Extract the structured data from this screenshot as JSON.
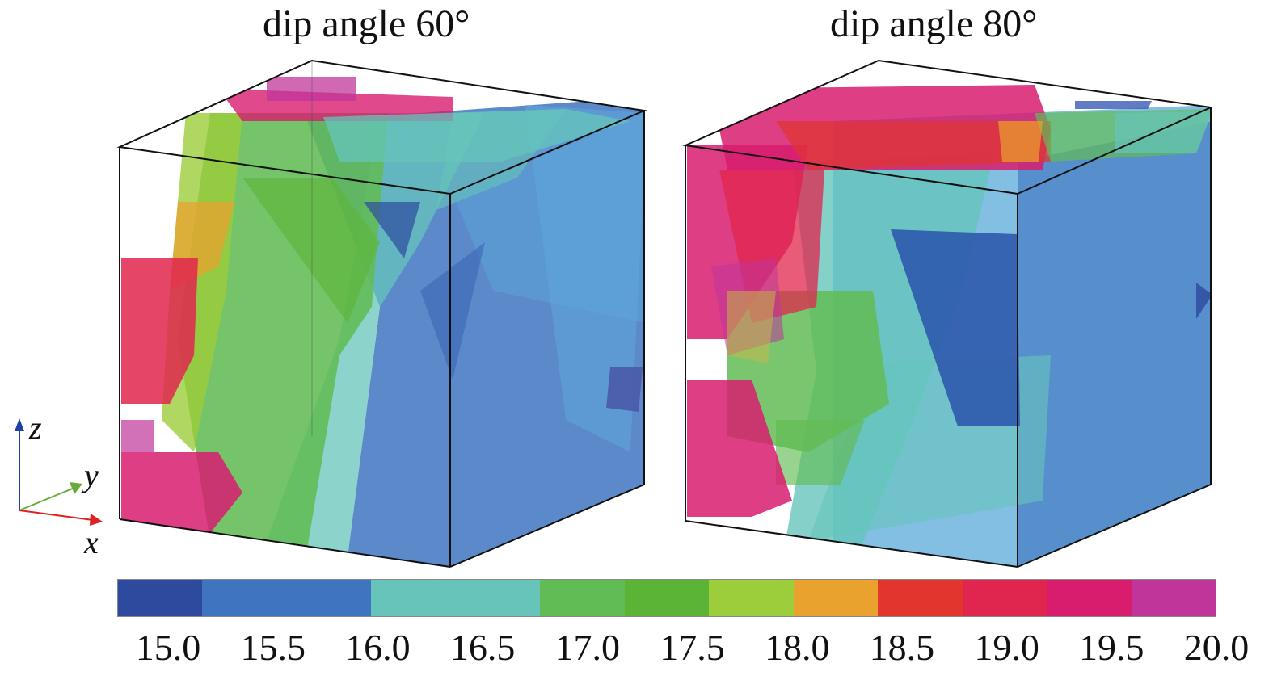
{
  "titles": {
    "left": "dip angle 60°",
    "right": "dip angle 80°"
  },
  "axes": {
    "x": "x",
    "y": "y",
    "z": "z",
    "colors": {
      "x": "#e02020",
      "y": "#6aaa3a",
      "z": "#2040a0"
    }
  },
  "colorbar": {
    "segment_colors": [
      "#2e4a9e",
      "#3f74c0",
      "#3f74c0",
      "#66c4bb",
      "#66c4bb",
      "#62bc55",
      "#5bb436",
      "#9ccd3a",
      "#e9a22e",
      "#e1352e",
      "#e0264e",
      "#d81c6e",
      "#c0359a"
    ],
    "tick_labels": [
      "15.0",
      "15.5",
      "16.0",
      "16.5",
      "17.0",
      "17.5",
      "18.0",
      "18.5",
      "19.0",
      "19.5",
      "20.0"
    ]
  }
}
